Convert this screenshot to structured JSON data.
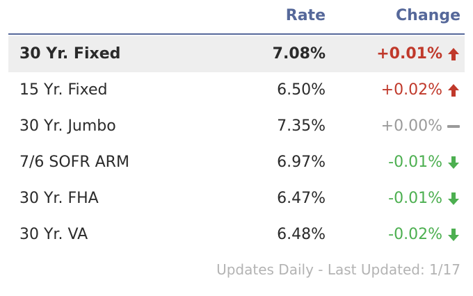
{
  "header": {
    "rate_label": "Rate",
    "change_label": "Change"
  },
  "rows": [
    {
      "product": "30 Yr. Fixed",
      "rate": "7.08%",
      "change": "+0.01%",
      "trend": "up",
      "trend_icon": "arrow-up-icon",
      "highlighted": true
    },
    {
      "product": "15 Yr. Fixed",
      "rate": "6.50%",
      "change": "+0.02%",
      "trend": "up",
      "trend_icon": "arrow-up-icon"
    },
    {
      "product": "30 Yr. Jumbo",
      "rate": "7.35%",
      "change": "+0.00%",
      "trend": "flat",
      "trend_icon": "dash-icon"
    },
    {
      "product": "7/6 SOFR ARM",
      "rate": "6.97%",
      "change": "-0.01%",
      "trend": "down",
      "trend_icon": "arrow-down-icon"
    },
    {
      "product": "30 Yr. FHA",
      "rate": "6.47%",
      "change": "-0.01%",
      "trend": "down",
      "trend_icon": "arrow-down-icon"
    },
    {
      "product": "30 Yr. VA",
      "rate": "6.48%",
      "change": "-0.02%",
      "trend": "down",
      "trend_icon": "arrow-down-icon"
    }
  ],
  "footer": {
    "note": "Updates Daily - Last Updated: 1/17"
  },
  "colors": {
    "header_text": "#56689a",
    "up": "#c0392b",
    "flat": "#9a9a9a",
    "down": "#4caf50",
    "highlight_bg": "#eeeeee"
  }
}
